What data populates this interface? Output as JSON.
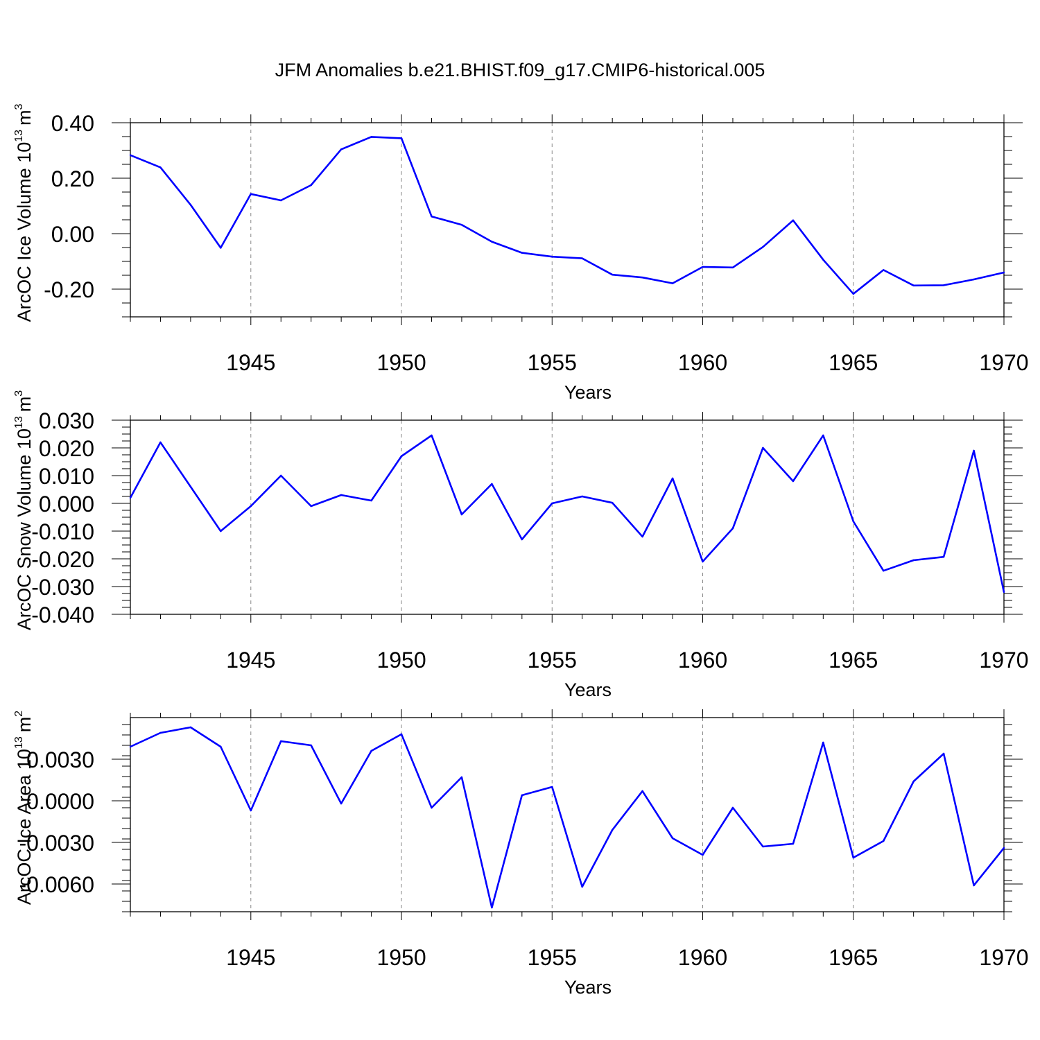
{
  "title": "JFM Anomalies b.e21.BHIST.f09_g17.CMIP6-historical.005",
  "line_color": "#0000ff",
  "chart_data": [
    {
      "type": "line",
      "ylabel": "ArcOC Ice Volume 10",
      "ylabel_sup": "13",
      "ylabel_unit": "m",
      "ylabel_unit_sup": "3",
      "xlabel": "Years",
      "xlim": [
        1941,
        1970
      ],
      "ylim": [
        -0.3,
        0.4
      ],
      "yticks": [
        0.4,
        0.2,
        0.0,
        -0.2
      ],
      "ytick_labels": [
        "0.40",
        "0.20",
        "0.00",
        "-0.20"
      ],
      "xticks": [
        1945,
        1950,
        1955,
        1960,
        1965,
        1970
      ],
      "xtick_labels": [
        "1945",
        "1950",
        "1955",
        "1960",
        "1965",
        "1970"
      ],
      "grid_x": [
        1945,
        1950,
        1955,
        1960,
        1965
      ],
      "x": [
        1941,
        1942,
        1943,
        1944,
        1945,
        1946,
        1947,
        1948,
        1949,
        1950,
        1951,
        1952,
        1953,
        1954,
        1955,
        1956,
        1957,
        1958,
        1959,
        1960,
        1961,
        1962,
        1963,
        1964,
        1965,
        1966,
        1967,
        1968,
        1969,
        1970
      ],
      "values": [
        0.283,
        0.239,
        0.104,
        -0.051,
        0.143,
        0.12,
        0.175,
        0.304,
        0.349,
        0.344,
        0.062,
        0.032,
        -0.029,
        -0.069,
        -0.083,
        -0.089,
        -0.148,
        -0.158,
        -0.179,
        -0.12,
        -0.122,
        -0.048,
        0.048,
        -0.094,
        -0.217,
        -0.131,
        -0.187,
        -0.186,
        -0.165,
        -0.14
      ]
    },
    {
      "type": "line",
      "ylabel": "ArcOC Snow Volume 10",
      "ylabel_sup": "13",
      "ylabel_unit": "m",
      "ylabel_unit_sup": "3",
      "xlabel": "Years",
      "xlim": [
        1941,
        1970
      ],
      "ylim": [
        -0.04,
        0.03
      ],
      "yticks": [
        0.03,
        0.02,
        0.01,
        0.0,
        -0.01,
        -0.02,
        -0.03,
        -0.04
      ],
      "ytick_labels": [
        "0.030",
        "0.020",
        "0.010",
        "0.000",
        "-0.010",
        "-0.020",
        "-0.030",
        "-0.040"
      ],
      "xticks": [
        1945,
        1950,
        1955,
        1960,
        1965,
        1970
      ],
      "xtick_labels": [
        "1945",
        "1950",
        "1955",
        "1960",
        "1965",
        "1970"
      ],
      "grid_x": [
        1945,
        1950,
        1955,
        1960,
        1965
      ],
      "x": [
        1941,
        1942,
        1943,
        1944,
        1945,
        1946,
        1947,
        1948,
        1949,
        1950,
        1951,
        1952,
        1953,
        1954,
        1955,
        1956,
        1957,
        1958,
        1959,
        1960,
        1961,
        1962,
        1963,
        1964,
        1965,
        1966,
        1967,
        1968,
        1969,
        1970
      ],
      "values": [
        0.002,
        0.022,
        0.006,
        -0.01,
        -0.001,
        0.01,
        -0.001,
        0.003,
        0.001,
        0.017,
        0.0245,
        -0.004,
        0.007,
        -0.013,
        0.0,
        0.0025,
        0.0002,
        -0.012,
        0.009,
        -0.021,
        -0.009,
        0.02,
        0.008,
        0.0245,
        -0.0065,
        -0.0243,
        -0.0205,
        -0.0193,
        0.019,
        -0.032
      ]
    },
    {
      "type": "line",
      "ylabel": "ArcOC Ice Area 10",
      "ylabel_sup": "13",
      "ylabel_unit": "m",
      "ylabel_unit_sup": "2",
      "xlabel": "Years",
      "xlim": [
        1941,
        1970
      ],
      "ylim": [
        -0.008,
        0.006
      ],
      "yticks": [
        0.003,
        0.0,
        -0.003,
        -0.006
      ],
      "ytick_labels": [
        "0.0030",
        "0.0000",
        "-0.0030",
        "-0.0060"
      ],
      "xticks": [
        1945,
        1950,
        1955,
        1960,
        1965,
        1970
      ],
      "xtick_labels": [
        "1945",
        "1950",
        "1955",
        "1960",
        "1965",
        "1970"
      ],
      "grid_x": [
        1945,
        1950,
        1955,
        1960,
        1965
      ],
      "x": [
        1941,
        1942,
        1943,
        1944,
        1945,
        1946,
        1947,
        1948,
        1949,
        1950,
        1951,
        1952,
        1953,
        1954,
        1955,
        1956,
        1957,
        1958,
        1959,
        1960,
        1961,
        1962,
        1963,
        1964,
        1965,
        1966,
        1967,
        1968,
        1969,
        1970
      ],
      "values": [
        0.0039,
        0.0049,
        0.0053,
        0.0039,
        -0.0007,
        0.0043,
        0.004,
        -0.0002,
        0.0036,
        0.0048,
        -0.0005,
        0.0017,
        -0.0077,
        0.0004,
        0.001,
        -0.0062,
        -0.0021,
        0.0007,
        -0.0027,
        -0.0039,
        -0.0005,
        -0.0033,
        -0.0031,
        0.0042,
        -0.0041,
        -0.0029,
        0.0014,
        0.0034,
        -0.0061,
        -0.0034
      ]
    }
  ]
}
